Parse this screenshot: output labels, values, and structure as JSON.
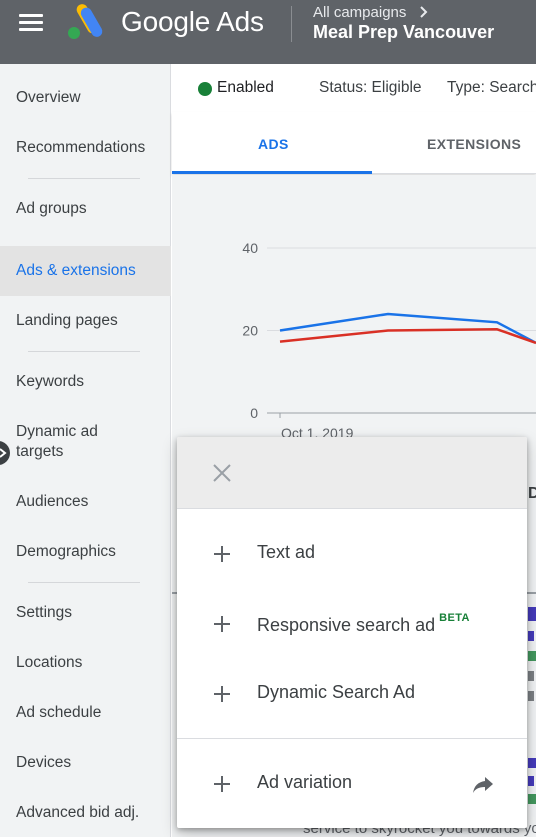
{
  "header": {
    "app_name": "Google Ads",
    "breadcrumb_parent": "All campaigns",
    "breadcrumb_current": "Meal Prep Vancouver"
  },
  "sidebar": {
    "items": [
      {
        "label": "Overview"
      },
      {
        "label": "Recommendations"
      },
      {
        "label": "Ad groups"
      },
      {
        "label": "Ads & extensions"
      },
      {
        "label": "Landing pages"
      },
      {
        "label": "Keywords"
      },
      {
        "label": "Dynamic ad targets"
      },
      {
        "label": "Audiences"
      },
      {
        "label": "Demographics"
      },
      {
        "label": "Settings"
      },
      {
        "label": "Locations"
      },
      {
        "label": "Ad schedule"
      },
      {
        "label": "Devices"
      },
      {
        "label": "Advanced bid adj."
      }
    ],
    "active_item": "Ads & extensions"
  },
  "status_bar": {
    "enabled": "Enabled",
    "status": "Status: Eligible",
    "type": "Type: Search"
  },
  "tabs": [
    {
      "label": "ADS",
      "active": true
    },
    {
      "label": "EXTENSIONS",
      "active": false
    }
  ],
  "chart_data": {
    "type": "line",
    "y_ticks": [
      "40",
      "20",
      "0"
    ],
    "ylim": [
      0,
      40
    ],
    "x_tick_labels": [
      "Oct 1, 2019"
    ],
    "series": [
      {
        "color": "#1a73e8",
        "values": [
          20,
          24,
          22,
          17
        ]
      },
      {
        "color": "#d93025",
        "values": [
          17.3,
          20,
          20.3,
          17
        ]
      }
    ]
  },
  "add_menu": {
    "items": [
      {
        "label": "Text ad"
      },
      {
        "label": "Responsive search ad",
        "badge": "BETA"
      },
      {
        "label": "Dynamic Search Ad"
      },
      {
        "label": "Ad variation"
      }
    ]
  },
  "background_peek": {
    "text": "service to skyrocket you towards yo"
  },
  "colors": {
    "header_bg": "#5f6368",
    "accent": "#1a73e8",
    "enabled_green": "#188038",
    "series_blue": "#1a73e8",
    "series_red": "#d93025"
  }
}
